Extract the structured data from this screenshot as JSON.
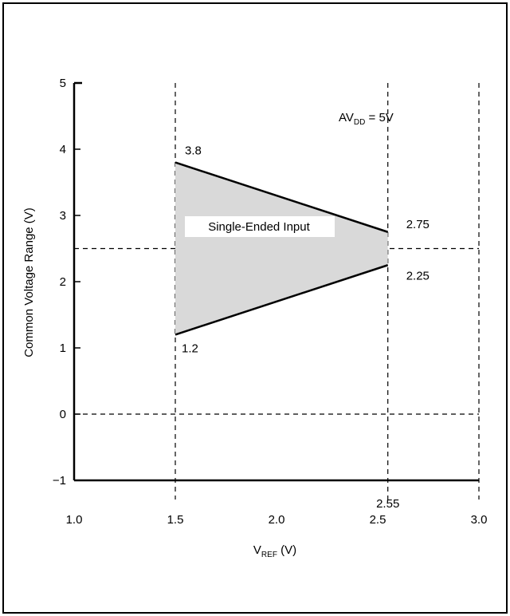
{
  "chart_data": {
    "type": "area",
    "title": "",
    "xlabel": {
      "main": "V",
      "sub": "REF",
      "unit": " (V)"
    },
    "ylabel": "Common Voltage Range (V)",
    "xlim": [
      1.0,
      3.0
    ],
    "ylim": [
      -1,
      5
    ],
    "x_ticks": [
      "1.0",
      "1.5",
      "2.0",
      "2.5",
      "3.0"
    ],
    "y_ticks": [
      "−1",
      "0",
      "1",
      "2",
      "3",
      "4",
      "5"
    ],
    "region_label": "Single-Ended Input",
    "condition": {
      "main": "AV",
      "sub": "DD",
      "suffix": " = 5V"
    },
    "region": {
      "x": [
        1.5,
        2.55
      ],
      "upper": [
        3.8,
        2.75
      ],
      "lower": [
        1.2,
        2.25
      ]
    },
    "point_labels": {
      "upper_left": "3.8",
      "lower_left": "1.2",
      "upper_right": "2.75",
      "lower_right": "2.25",
      "x_right": "2.55"
    },
    "reference_lines": {
      "vertical": [
        1.5,
        2.55,
        3.0
      ],
      "horizontal": [
        2.5,
        0
      ]
    },
    "colors": {
      "fill": "#d9d9d9",
      "line": "#000000"
    }
  }
}
